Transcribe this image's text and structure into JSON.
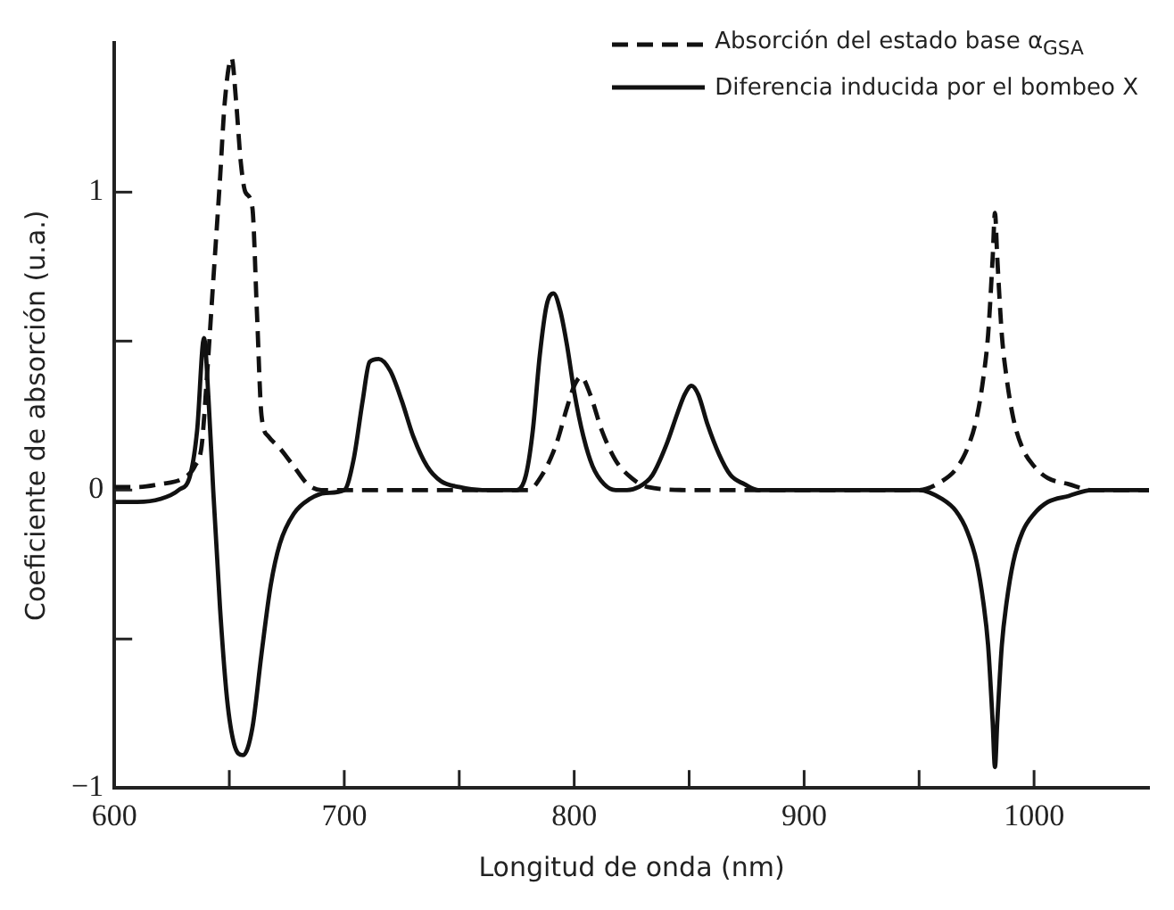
{
  "chart_data": {
    "type": "line",
    "xlabel": "Longitud de onda (nm)",
    "ylabel": "Coeficiente de absorción (u.a.)",
    "xlim": [
      600,
      1050
    ],
    "ylim": [
      -1,
      1.5
    ],
    "xticks": [
      600,
      {
        "value": 650,
        "label": null
      },
      700,
      {
        "value": 750,
        "label": null
      },
      800,
      {
        "value": 850,
        "label": null
      },
      900,
      {
        "value": 950,
        "label": null
      },
      1000
    ],
    "yticks": [
      -1,
      {
        "value": -0.5,
        "label": null
      },
      0,
      {
        "value": 0.5,
        "label": null
      },
      1
    ],
    "grid": false,
    "legend": "top right",
    "marker": "none",
    "series": [
      {
        "name": "Absorción del estado base α$_{GSA}$",
        "color": "#111111",
        "line_style": "dashed",
        "x": [
          600,
          610,
          620,
          630,
          635,
          638,
          640,
          643,
          646,
          648,
          651,
          653,
          655,
          657,
          660,
          662,
          664,
          667,
          672,
          678,
          684,
          690,
          700,
          750,
          780,
          786,
          792,
          797,
          800,
          803,
          807,
          812,
          818,
          825,
          832,
          850,
          900,
          950,
          960,
          966,
          971,
          975,
          978,
          980,
          982,
          983,
          984,
          986,
          988,
          991,
          995,
          1000,
          1006,
          1015,
          1025,
          1035,
          1050
        ],
        "values": [
          0.01,
          0.01,
          0.02,
          0.04,
          0.08,
          0.15,
          0.35,
          0.7,
          1.05,
          1.3,
          1.45,
          1.3,
          1.1,
          1.0,
          0.95,
          0.6,
          0.25,
          0.18,
          0.14,
          0.08,
          0.02,
          0,
          0,
          0,
          0,
          0.05,
          0.15,
          0.28,
          0.35,
          0.38,
          0.32,
          0.2,
          0.1,
          0.04,
          0.01,
          0,
          0,
          0,
          0.03,
          0.07,
          0.14,
          0.24,
          0.38,
          0.52,
          0.78,
          0.93,
          0.78,
          0.52,
          0.38,
          0.24,
          0.14,
          0.08,
          0.04,
          0.02,
          0,
          0,
          0
        ]
      },
      {
        "name": "Diferencia inducida por el bombeo X",
        "color": "#111111",
        "line_style": "solid",
        "x": [
          600,
          610,
          620,
          628,
          633,
          636,
          639,
          641,
          643,
          646,
          649,
          652,
          656,
          660,
          664,
          668,
          672,
          678,
          685,
          692,
          700,
          704,
          708,
          711,
          715,
          720,
          725,
          730,
          736,
          742,
          750,
          760,
          775,
          779,
          782,
          785,
          788,
          791,
          794,
          797,
          800,
          804,
          808,
          813,
          818,
          823,
          828,
          834,
          840,
          845,
          848,
          851,
          854,
          858,
          863,
          868,
          874,
          880,
          900,
          950,
          960,
          966,
          971,
          975,
          978,
          980,
          982,
          983,
          984,
          986,
          988,
          991,
          995,
          1000,
          1006,
          1015,
          1025,
          1035,
          1050
        ],
        "values": [
          -0.04,
          -0.04,
          -0.03,
          0,
          0.05,
          0.2,
          0.51,
          0.3,
          0.0,
          -0.4,
          -0.7,
          -0.85,
          -0.89,
          -0.8,
          -0.55,
          -0.32,
          -0.18,
          -0.08,
          -0.03,
          -0.01,
          0,
          0.1,
          0.3,
          0.43,
          0.44,
          0.4,
          0.3,
          0.18,
          0.08,
          0.03,
          0.01,
          0,
          0,
          0.05,
          0.2,
          0.45,
          0.62,
          0.66,
          0.6,
          0.48,
          0.33,
          0.18,
          0.08,
          0.02,
          0,
          0,
          0.01,
          0.05,
          0.15,
          0.26,
          0.32,
          0.35,
          0.32,
          0.22,
          0.12,
          0.05,
          0.02,
          0,
          0,
          0,
          -0.03,
          -0.07,
          -0.14,
          -0.24,
          -0.38,
          -0.52,
          -0.78,
          -0.93,
          -0.78,
          -0.52,
          -0.38,
          -0.24,
          -0.14,
          -0.08,
          -0.04,
          -0.02,
          0,
          0,
          0
        ]
      }
    ]
  }
}
